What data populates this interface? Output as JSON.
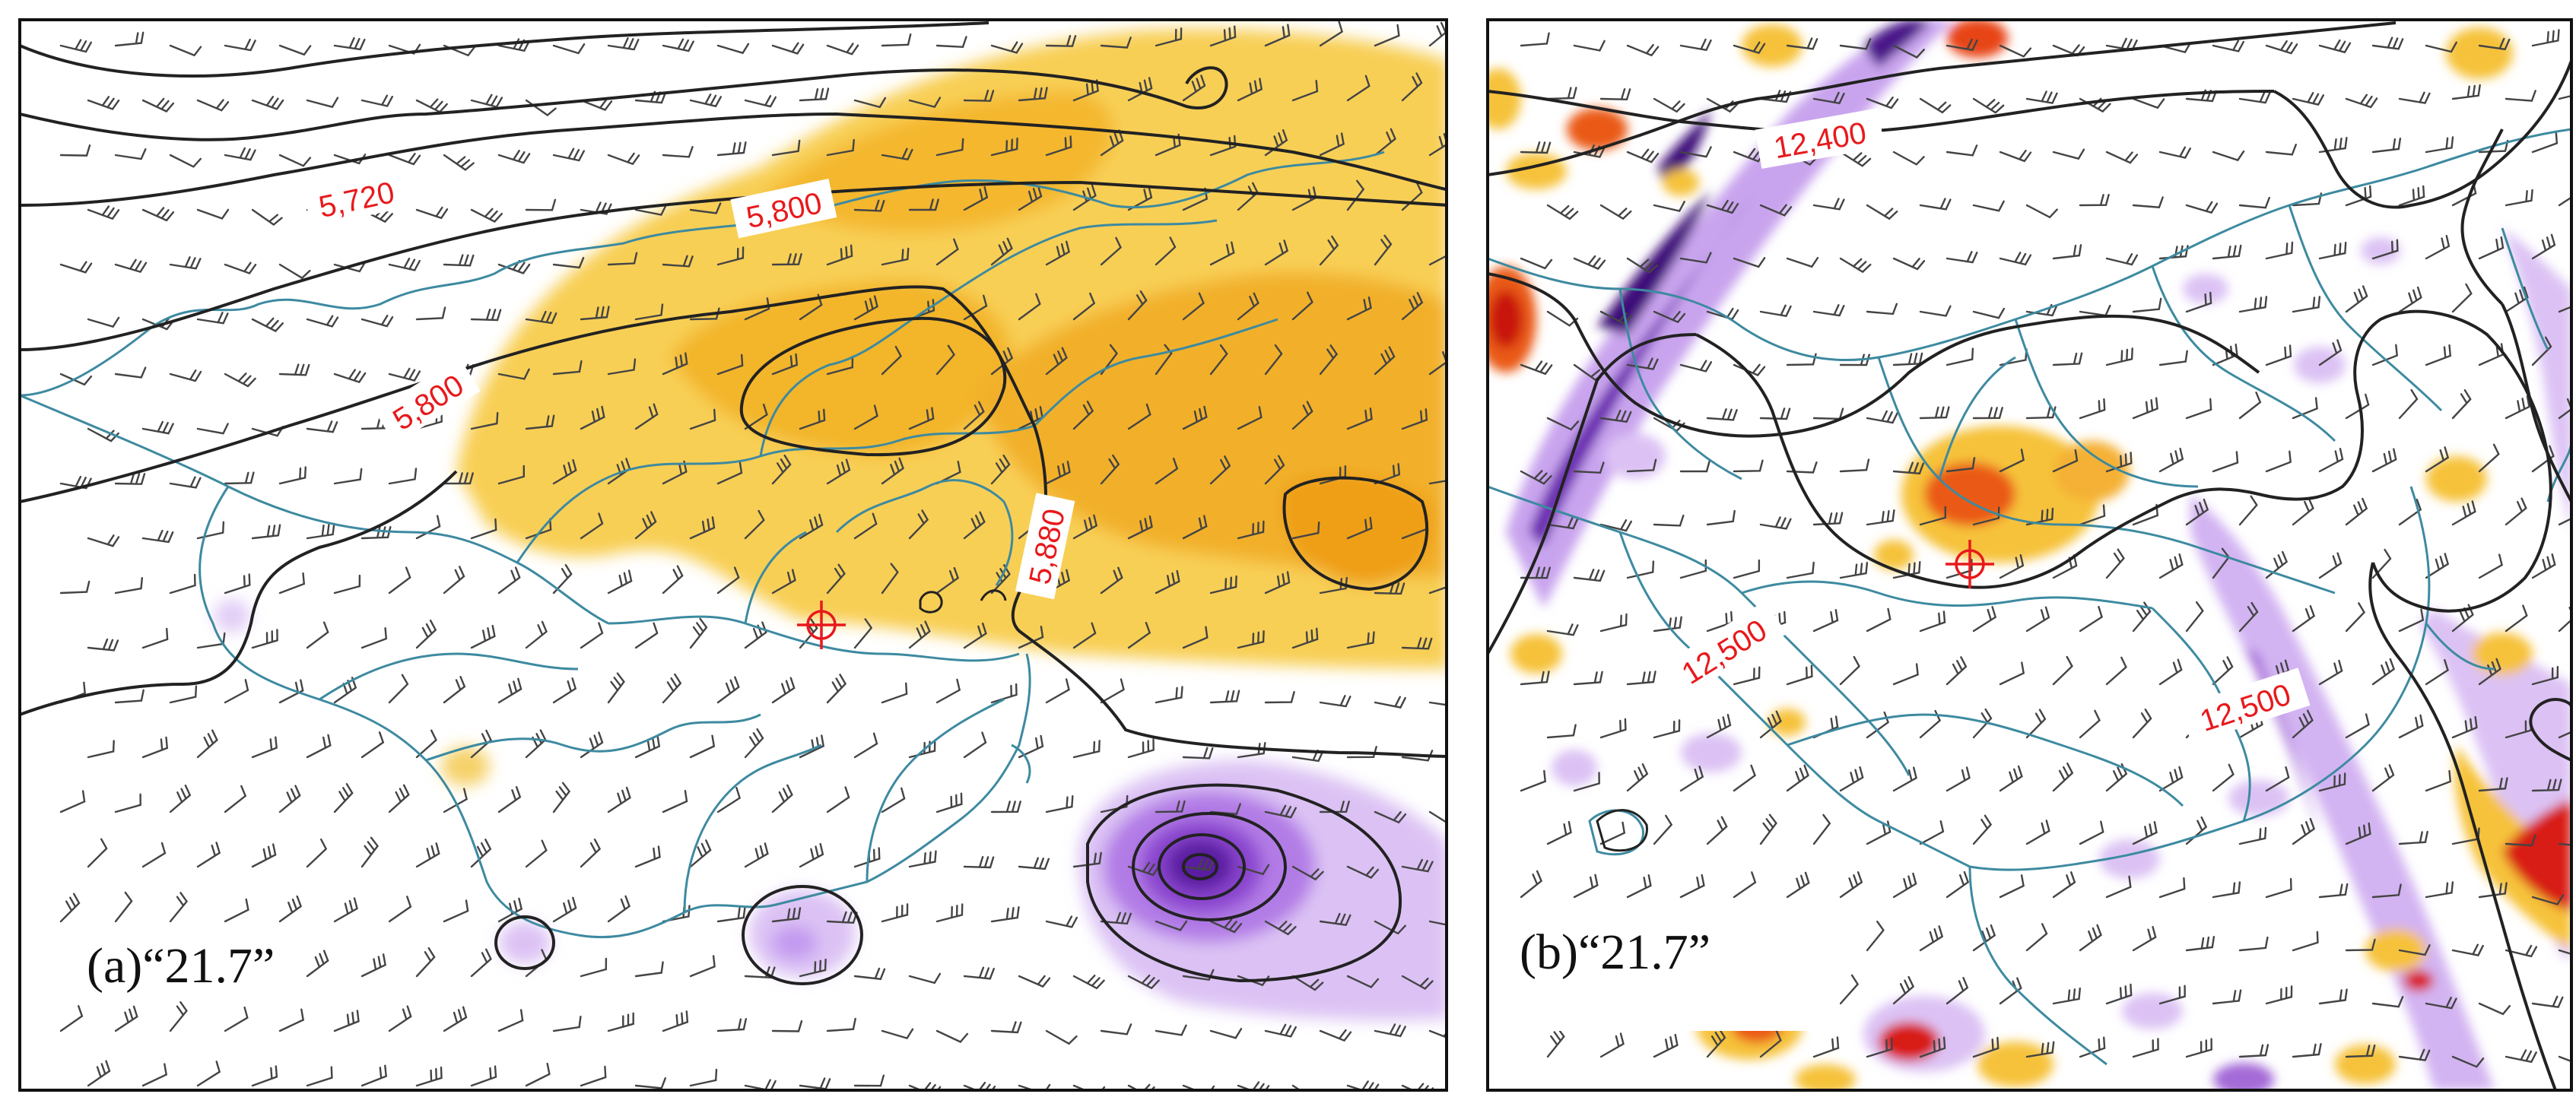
{
  "panels": [
    {
      "id": "a",
      "label": "(a)“21.7”",
      "contour_labels": [
        "5,720",
        "5,800",
        "5,800",
        "5,880"
      ],
      "colors": {
        "warm": "#f6c23a",
        "warm_deep": "#f0a81c",
        "cool_light": "#dcc2f4",
        "cool": "#b27be6",
        "cool_deep": "#6e22b8",
        "cool_core": "#3a0a70",
        "contour": "#222222",
        "border": "#3d8aa0",
        "label": "#e8191c"
      },
      "icons": [
        "wind-barb-icon",
        "target-marker-icon"
      ]
    },
    {
      "id": "b",
      "label": "(b)“21.7”",
      "contour_labels": [
        "12,400",
        "12,500",
        "12,500"
      ],
      "colors": {
        "warm": "#f6c23a",
        "warm_deep": "#ea5a16",
        "hot": "#d81a12",
        "cool_light": "#dcc2f4",
        "cool": "#a46bd8",
        "cool_deep": "#3e0b78",
        "contour": "#222222",
        "border": "#3d8aa0",
        "label": "#e8191c"
      },
      "icons": [
        "wind-barb-icon",
        "target-marker-icon"
      ]
    }
  ]
}
